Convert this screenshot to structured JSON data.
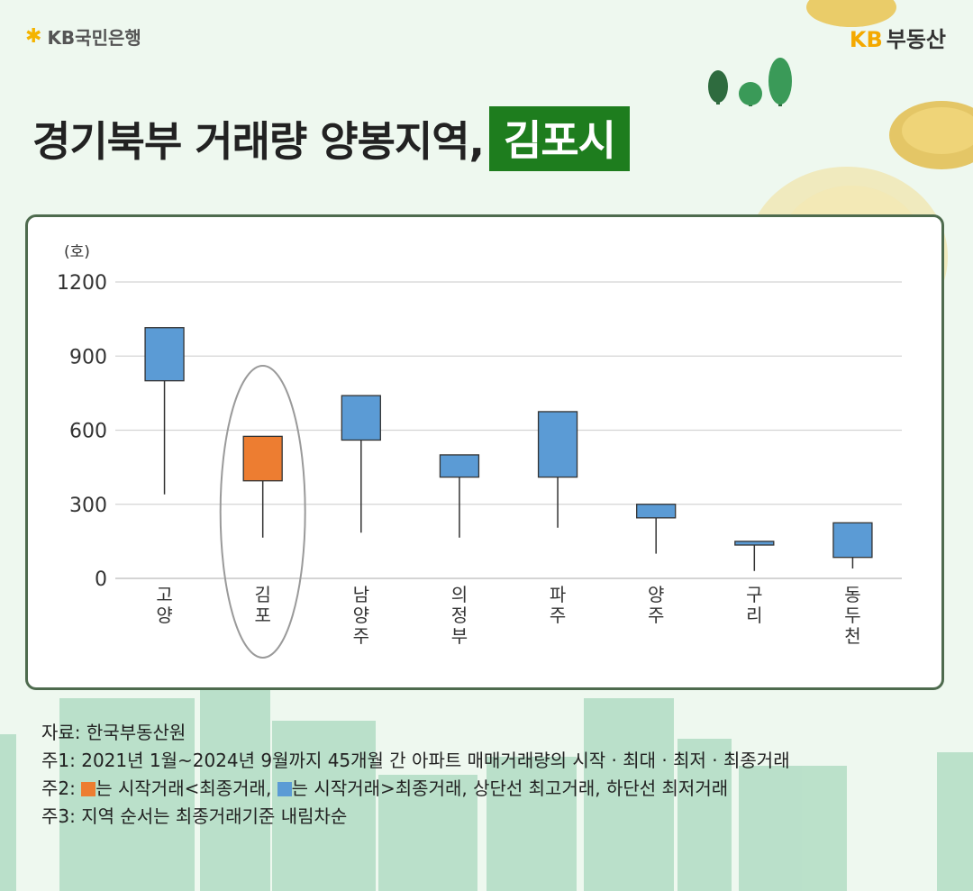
{
  "brand": {
    "left_text": "KB국민은행",
    "right_kb": "KB",
    "right_text": "부동산"
  },
  "title": {
    "main": "경기북부 거래량 양봉지역,",
    "highlight": "김포시"
  },
  "colors": {
    "up": "#ed7d31",
    "down": "#5b9bd5",
    "accent": "#1e7d1e"
  },
  "chart_data": {
    "type": "candlestick",
    "unit": "(호)",
    "ylim": [
      0,
      1200
    ],
    "yticks": [
      0,
      300,
      600,
      900,
      1200
    ],
    "grid": true,
    "categories": [
      "고양",
      "김포",
      "남양주",
      "의정부",
      "파주",
      "양주",
      "구리",
      "동두천"
    ],
    "highlighted_category": "김포",
    "series": [
      {
        "category": "고양",
        "open": 1015,
        "close": 800,
        "high": 1015,
        "low": 340
      },
      {
        "category": "김포",
        "open": 395,
        "close": 575,
        "high": 575,
        "low": 165
      },
      {
        "category": "남양주",
        "open": 740,
        "close": 560,
        "high": 740,
        "low": 185
      },
      {
        "category": "의정부",
        "open": 500,
        "close": 410,
        "high": 500,
        "low": 165
      },
      {
        "category": "파주",
        "open": 675,
        "close": 410,
        "high": 675,
        "low": 205
      },
      {
        "category": "양주",
        "open": 300,
        "close": 245,
        "high": 300,
        "low": 100
      },
      {
        "category": "구리",
        "open": 150,
        "close": 135,
        "high": 150,
        "low": 30
      },
      {
        "category": "동두천",
        "open": 225,
        "close": 85,
        "high": 225,
        "low": 40
      }
    ]
  },
  "notes": {
    "source": "자료: 한국부동산원",
    "note1": "주1: 2021년 1월~2024년 9월까지 45개월 간 아파트 매매거래량의 시작 · 최대 · 최저 · 최종거래",
    "note2_prefix": "주2: ",
    "note2_a": "는 시작거래<최종거래, ",
    "note2_b": "는 시작거래>최종거래, 상단선 최고거래, 하단선 최저거래",
    "note3": "주3: 지역 순서는 최종거래기준 내림차순"
  }
}
